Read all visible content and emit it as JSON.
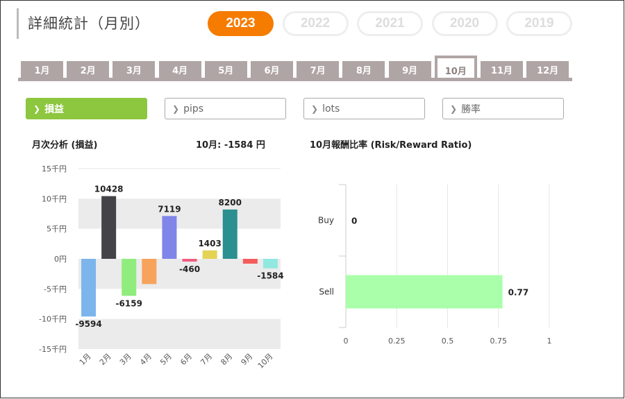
{
  "header": {
    "title": "詳細統計（月別）",
    "years": [
      "2023",
      "2022",
      "2021",
      "2020",
      "2019"
    ],
    "active_year": "2023"
  },
  "months": [
    "1月",
    "2月",
    "3月",
    "4月",
    "5月",
    "6月",
    "7月",
    "8月",
    "9月",
    "10月",
    "11月",
    "12月"
  ],
  "active_month": "10月",
  "filters": [
    "損益",
    "pips",
    "lots",
    "勝率"
  ],
  "active_filter": "損益",
  "monthly": {
    "title": "月次分析 (損益)",
    "summary": "10月:  -1584 円"
  },
  "ratio": {
    "title": "10月報酬比率 (Risk/Reward Ratio)"
  },
  "chart_data": [
    {
      "type": "bar",
      "categories": [
        "1月",
        "2月",
        "3月",
        "4月",
        "5月",
        "6月",
        "7月",
        "8月",
        "9月",
        "10月"
      ],
      "values": [
        -9594,
        10428,
        -6159,
        -4200,
        7119,
        -460,
        1403,
        8200,
        -800,
        -1584
      ],
      "value_labels": [
        "-9594",
        "10428",
        "-6159",
        "",
        "7119",
        "-460",
        "1403",
        "8200",
        "",
        "-1584"
      ],
      "colors": [
        "#7cb5ec",
        "#434348",
        "#90ed7d",
        "#f7a35c",
        "#8085e9",
        "#f15c80",
        "#e4d354",
        "#2b908f",
        "#f45b5b",
        "#91e8e1"
      ],
      "ylim": [
        -15000,
        15000
      ],
      "yticks": [
        15000,
        10000,
        5000,
        0,
        -5000,
        -10000,
        -15000
      ],
      "ytick_labels": [
        "15千円",
        "10千円",
        "5千円",
        "0円",
        "-5千円",
        "-10千円",
        "-15千円"
      ],
      "grid": "alternating bands"
    },
    {
      "type": "bar",
      "orientation": "horizontal",
      "categories": [
        "Buy",
        "Sell"
      ],
      "values": [
        0,
        0.77
      ],
      "value_labels": [
        "0",
        "0.77"
      ],
      "color": "#aaffaa",
      "xlim": [
        0,
        1
      ],
      "xticks": [
        0,
        0.25,
        0.5,
        0.75,
        1
      ],
      "xtick_labels": [
        "0",
        "0.25",
        "0.5",
        "0.75",
        "1"
      ],
      "grid": true
    }
  ]
}
